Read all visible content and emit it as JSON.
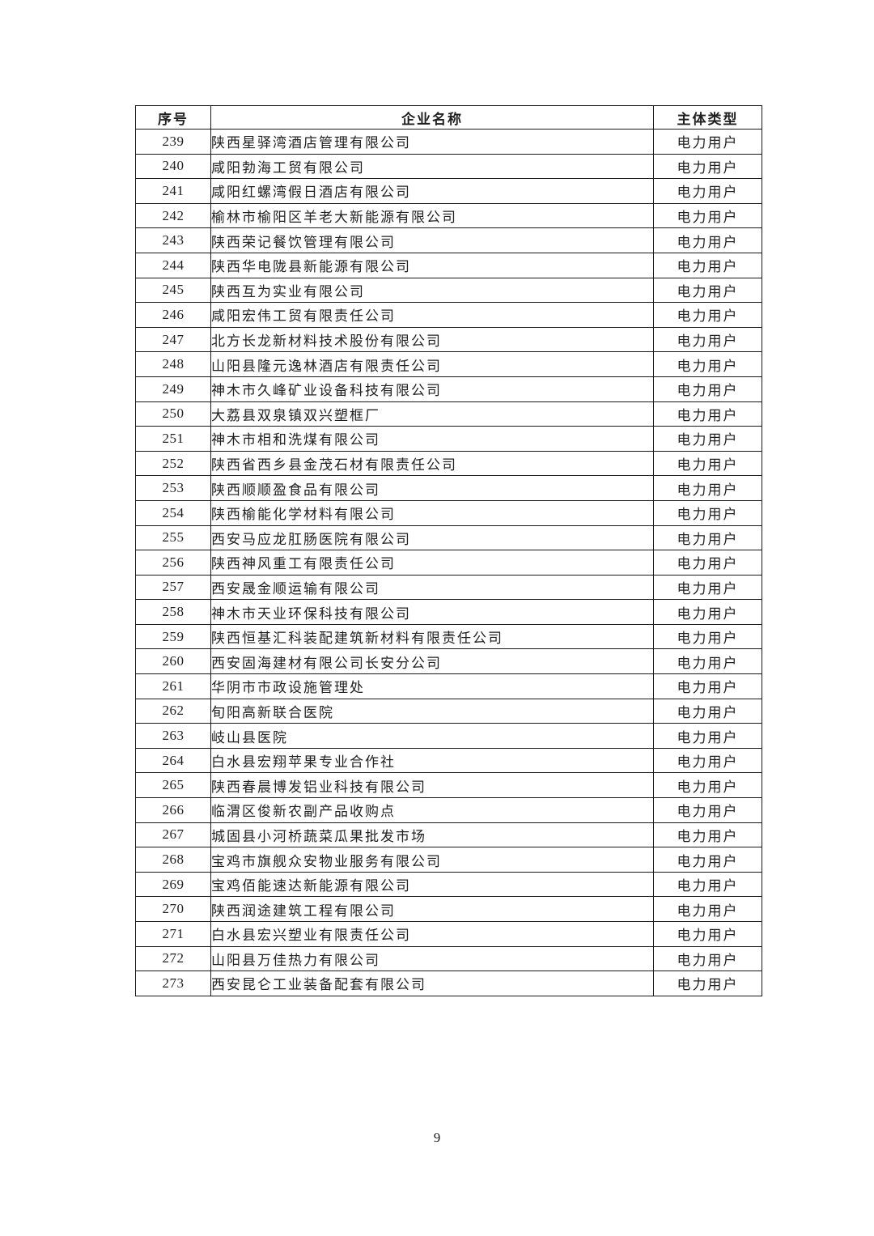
{
  "table": {
    "headers": [
      "序号",
      "企业名称",
      "主体类型"
    ],
    "rows": [
      {
        "no": "239",
        "name": "陕西星驿湾酒店管理有限公司",
        "type": "电力用户"
      },
      {
        "no": "240",
        "name": "咸阳勃海工贸有限公司",
        "type": "电力用户"
      },
      {
        "no": "241",
        "name": "咸阳红螺湾假日酒店有限公司",
        "type": "电力用户"
      },
      {
        "no": "242",
        "name": "榆林市榆阳区羊老大新能源有限公司",
        "type": "电力用户"
      },
      {
        "no": "243",
        "name": "陕西荣记餐饮管理有限公司",
        "type": "电力用户"
      },
      {
        "no": "244",
        "name": "陕西华电陇县新能源有限公司",
        "type": "电力用户"
      },
      {
        "no": "245",
        "name": "陕西互为实业有限公司",
        "type": "电力用户"
      },
      {
        "no": "246",
        "name": "咸阳宏伟工贸有限责任公司",
        "type": "电力用户"
      },
      {
        "no": "247",
        "name": "北方长龙新材料技术股份有限公司",
        "type": "电力用户"
      },
      {
        "no": "248",
        "name": "山阳县隆元逸林酒店有限责任公司",
        "type": "电力用户"
      },
      {
        "no": "249",
        "name": "神木市久峰矿业设备科技有限公司",
        "type": "电力用户"
      },
      {
        "no": "250",
        "name": "大荔县双泉镇双兴塑框厂",
        "type": "电力用户"
      },
      {
        "no": "251",
        "name": "神木市相和洗煤有限公司",
        "type": "电力用户"
      },
      {
        "no": "252",
        "name": "陕西省西乡县金茂石材有限责任公司",
        "type": "电力用户"
      },
      {
        "no": "253",
        "name": "陕西顺顺盈食品有限公司",
        "type": "电力用户"
      },
      {
        "no": "254",
        "name": "陕西榆能化学材料有限公司",
        "type": "电力用户"
      },
      {
        "no": "255",
        "name": "西安马应龙肛肠医院有限公司",
        "type": "电力用户"
      },
      {
        "no": "256",
        "name": "陕西神风重工有限责任公司",
        "type": "电力用户"
      },
      {
        "no": "257",
        "name": "西安晟金顺运输有限公司",
        "type": "电力用户"
      },
      {
        "no": "258",
        "name": "神木市天业环保科技有限公司",
        "type": "电力用户"
      },
      {
        "no": "259",
        "name": "陕西恒基汇科装配建筑新材料有限责任公司",
        "type": "电力用户"
      },
      {
        "no": "260",
        "name": "西安固海建材有限公司长安分公司",
        "type": "电力用户"
      },
      {
        "no": "261",
        "name": "华阴市市政设施管理处",
        "type": "电力用户"
      },
      {
        "no": "262",
        "name": "旬阳高新联合医院",
        "type": "电力用户"
      },
      {
        "no": "263",
        "name": "岐山县医院",
        "type": "电力用户"
      },
      {
        "no": "264",
        "name": "白水县宏翔苹果专业合作社",
        "type": "电力用户"
      },
      {
        "no": "265",
        "name": "陕西春晨博发铝业科技有限公司",
        "type": "电力用户"
      },
      {
        "no": "266",
        "name": "临渭区俊新农副产品收购点",
        "type": "电力用户"
      },
      {
        "no": "267",
        "name": "城固县小河桥蔬菜瓜果批发市场",
        "type": "电力用户"
      },
      {
        "no": "268",
        "name": "宝鸡市旗舰众安物业服务有限公司",
        "type": "电力用户"
      },
      {
        "no": "269",
        "name": "宝鸡佰能速达新能源有限公司",
        "type": "电力用户"
      },
      {
        "no": "270",
        "name": "陕西润途建筑工程有限公司",
        "type": "电力用户"
      },
      {
        "no": "271",
        "name": "白水县宏兴塑业有限责任公司",
        "type": "电力用户"
      },
      {
        "no": "272",
        "name": "山阳县万佳热力有限公司",
        "type": "电力用户"
      },
      {
        "no": "273",
        "name": "西安昆仑工业装备配套有限公司",
        "type": "电力用户"
      }
    ]
  },
  "footer": {
    "page_number": "9"
  }
}
